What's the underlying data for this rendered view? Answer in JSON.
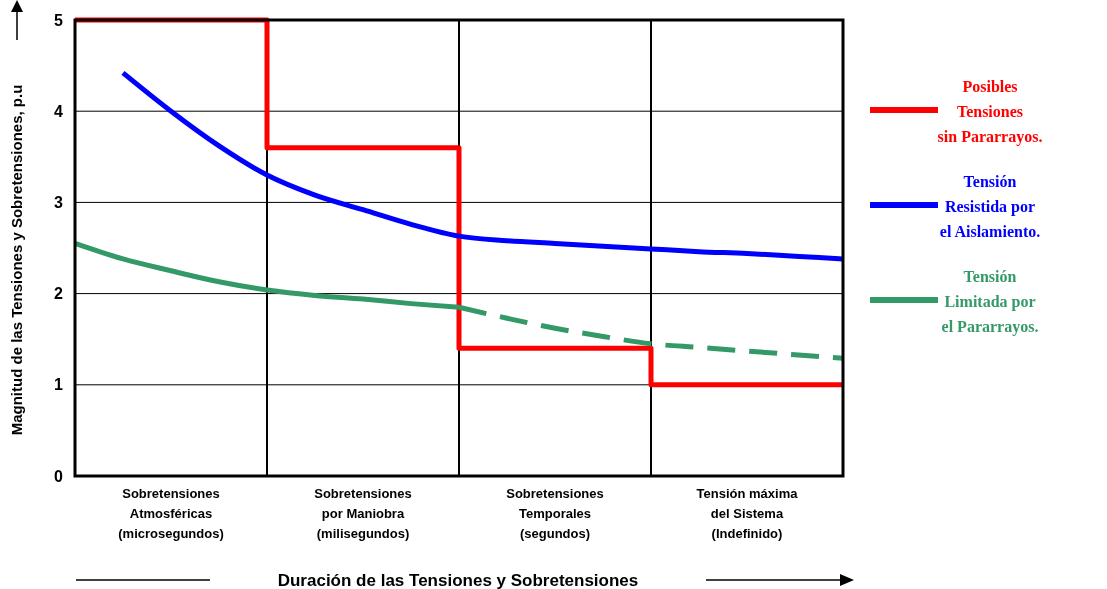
{
  "chart_data": {
    "type": "line",
    "xlabel": "Duración de las Tensiones y Sobretensiones",
    "ylabel": "Magnitud de las Tensiones y Sobretensiones, p.u",
    "categories": [
      null,
      null,
      "Sobretensiones\nAtmosféricas\n(microsegundos)",
      null,
      null,
      null,
      "Sobretensiones\npor Maniobra\n(milisegundos)",
      null,
      null,
      null,
      "Sobretensiones\nTemporales\n(segundos)",
      null,
      null,
      null,
      "Tensión máxima\ndel Sistema\n(Indefinido)",
      null,
      null
    ],
    "ylim": [
      0,
      5
    ],
    "yticks": [
      0,
      1,
      2,
      3,
      4,
      5
    ],
    "grid": true,
    "legend": "right",
    "marker": "none",
    "series": [
      {
        "name": "Posibles\nTensiones\nsin Pararrayos.",
        "type": "step",
        "color": "#ff0000",
        "line_style": "solid",
        "values": [
          5,
          5,
          5,
          5,
          3.6,
          3.6,
          3.6,
          3.6,
          1.4,
          1.4,
          1.4,
          1.4,
          1,
          1,
          1,
          1,
          1
        ]
      },
      {
        "name": "Tensión\nResistida por\nel Aislamiento.",
        "color": "#0000ff",
        "line_style": "solid",
        "values": [
          null,
          4.42,
          4.0,
          3.62,
          3.3,
          3.08,
          2.92,
          2.76,
          2.63,
          2.58,
          2.55,
          2.52,
          2.49,
          2.46,
          2.44,
          2.41,
          2.38
        ]
      },
      {
        "name": "Tensión\nLimitada por\nel Pararrayos.",
        "color": "#339966",
        "line_style": "solid",
        "values": [
          2.55,
          2.38,
          2.25,
          2.13,
          2.04,
          1.98,
          1.94,
          1.89,
          1.85,
          null,
          null,
          null,
          null,
          null,
          null,
          null,
          null
        ]
      },
      {
        "color": "#339966",
        "line_style": "dashed",
        "values": [
          null,
          null,
          null,
          null,
          null,
          null,
          null,
          null,
          1.85,
          1.73,
          1.62,
          1.53,
          1.45,
          1.41,
          1.37,
          1.33,
          1.29
        ]
      }
    ]
  }
}
